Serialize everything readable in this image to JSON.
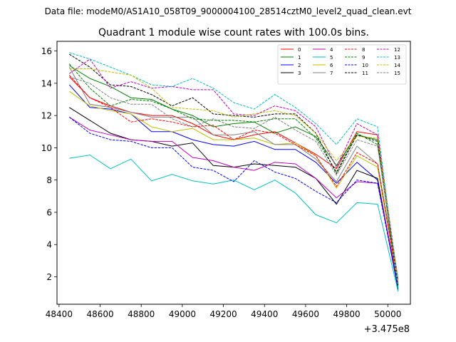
{
  "header": {
    "caption": "Data file: modeM0/AS1A10_058T09_9000004100_28514cztM0_level2_quad_clean.evt"
  },
  "chart_data": {
    "type": "line",
    "title": "Quadrant 1 module wise count rates with 100.0s bins.",
    "xlabel": "",
    "ylabel": "",
    "x_offset_label": "+3.475e8",
    "x": [
      48450,
      48550,
      48650,
      48750,
      48850,
      48950,
      49050,
      49150,
      49250,
      49350,
      49450,
      49550,
      49650,
      49750,
      49850,
      49950,
      50050
    ],
    "xlim": [
      48390,
      50110
    ],
    "ylim": [
      0.3,
      16.6
    ],
    "xticks": [
      48400,
      48600,
      48800,
      49000,
      49200,
      49400,
      49600,
      49800,
      50000
    ],
    "xtick_labels": [
      "48400",
      "48600",
      "48800",
      "49000",
      "49200",
      "49400",
      "49600",
      "49800",
      "50000"
    ],
    "yticks": [
      2,
      4,
      6,
      8,
      10,
      12,
      14,
      16
    ],
    "ytick_labels": [
      "2",
      "4",
      "6",
      "8",
      "10",
      "12",
      "14",
      "16"
    ],
    "grid": false,
    "legend_position": "top-right",
    "series": [
      {
        "name": "0",
        "color": "#ff0000",
        "dash": "solid",
        "values": [
          14.4,
          13.1,
          12.6,
          12.2,
          12.0,
          12.0,
          11.5,
          10.8,
          10.5,
          10.8,
          11.0,
          10.3,
          9.6,
          8.7,
          11.0,
          10.8,
          1.4
        ]
      },
      {
        "name": "1",
        "color": "#008000",
        "dash": "solid",
        "values": [
          15.1,
          14.3,
          13.8,
          13.1,
          13.0,
          12.4,
          12.0,
          11.3,
          11.5,
          11.6,
          10.9,
          11.3,
          10.7,
          8.9,
          10.8,
          10.5,
          1.3
        ]
      },
      {
        "name": "2",
        "color": "#0000ff",
        "dash": "solid",
        "values": [
          13.9,
          12.5,
          12.4,
          12.1,
          11.0,
          11.0,
          10.5,
          10.2,
          10.1,
          10.4,
          9.9,
          9.9,
          9.1,
          7.8,
          9.1,
          8.0,
          1.2
        ]
      },
      {
        "name": "3",
        "color": "#000000",
        "dash": "solid",
        "values": [
          12.5,
          11.7,
          10.9,
          10.5,
          10.4,
          10.1,
          10.3,
          8.9,
          8.8,
          9.0,
          8.9,
          8.8,
          8.1,
          6.5,
          8.6,
          8.1,
          1.3
        ]
      },
      {
        "name": "4",
        "color": "#bf00bf",
        "dash": "solid",
        "values": [
          11.9,
          11.1,
          10.8,
          10.5,
          10.4,
          10.4,
          9.4,
          9.2,
          8.8,
          8.6,
          9.1,
          9.0,
          8.1,
          6.9,
          7.9,
          7.8,
          1.6
        ]
      },
      {
        "name": "5",
        "color": "#00bfbf",
        "dash": "solid",
        "values": [
          9.35,
          9.55,
          8.7,
          9.3,
          7.95,
          8.35,
          7.95,
          7.75,
          8.0,
          7.4,
          8.0,
          7.2,
          5.85,
          5.35,
          6.6,
          6.5,
          1.1
        ]
      },
      {
        "name": "6",
        "color": "#bfbf00",
        "dash": "solid",
        "values": [
          13.5,
          12.6,
          12.3,
          12.1,
          11.3,
          11.0,
          11.2,
          10.5,
          10.5,
          10.6,
          10.2,
          10.3,
          9.5,
          7.5,
          9.5,
          8.8,
          1.5
        ]
      },
      {
        "name": "7",
        "color": "#808080",
        "dash": "solid",
        "values": [
          15.0,
          12.7,
          12.5,
          12.2,
          11.9,
          11.9,
          11.9,
          10.8,
          10.8,
          11.0,
          10.2,
          10.2,
          9.3,
          7.9,
          10.1,
          9.0,
          1.8
        ]
      },
      {
        "name": "8",
        "color": "#ff0000",
        "dash": "dashed",
        "values": [
          14.5,
          13.1,
          12.5,
          11.6,
          11.8,
          11.6,
          11.3,
          11.4,
          10.5,
          11.1,
          10.9,
          10.2,
          9.5,
          7.6,
          9.7,
          9.0,
          1.5
        ]
      },
      {
        "name": "9",
        "color": "#008000",
        "dash": "dashed",
        "values": [
          15.2,
          13.7,
          12.6,
          13.0,
          12.9,
          12.4,
          11.8,
          11.7,
          11.7,
          11.6,
          11.8,
          11.8,
          10.6,
          8.5,
          10.9,
          10.2,
          1.5
        ]
      },
      {
        "name": "10",
        "color": "#0000ff",
        "dash": "dashed",
        "values": [
          11.9,
          10.9,
          10.5,
          10.4,
          10.0,
          10.0,
          8.8,
          8.6,
          7.9,
          9.2,
          8.5,
          8.1,
          7.3,
          6.6,
          8.0,
          7.8,
          1.3
        ]
      },
      {
        "name": "11",
        "color": "#000000",
        "dash": "dashed",
        "values": [
          15.8,
          15.0,
          13.9,
          13.8,
          13.3,
          12.6,
          13.1,
          12.1,
          12.0,
          11.9,
          12.1,
          12.1,
          10.9,
          8.4,
          10.8,
          10.4,
          1.5
        ]
      },
      {
        "name": "12",
        "color": "#bf00bf",
        "dash": "dashed",
        "values": [
          14.6,
          15.5,
          13.7,
          14.1,
          13.7,
          13.8,
          13.6,
          13.6,
          12.1,
          12.0,
          12.6,
          12.3,
          11.3,
          8.8,
          11.5,
          10.8,
          1.8
        ]
      },
      {
        "name": "13",
        "color": "#00bfbf",
        "dash": "dashed",
        "values": [
          15.9,
          15.5,
          15.0,
          14.5,
          13.9,
          13.8,
          14.3,
          13.7,
          12.8,
          12.4,
          13.3,
          12.5,
          11.5,
          10.2,
          11.8,
          11.3,
          1.3
        ]
      },
      {
        "name": "14",
        "color": "#bfbf00",
        "dash": "dashed",
        "values": [
          14.9,
          14.9,
          14.7,
          14.5,
          13.7,
          12.5,
          12.4,
          12.3,
          11.9,
          12.1,
          12.3,
          12.0,
          10.9,
          9.2,
          10.7,
          10.6,
          1.7
        ]
      },
      {
        "name": "15",
        "color": "#808080",
        "dash": "dashed",
        "values": [
          14.4,
          14.0,
          13.1,
          12.7,
          12.7,
          11.8,
          11.3,
          11.8,
          11.3,
          11.2,
          11.9,
          11.1,
          10.4,
          8.3,
          10.5,
          10.1,
          1.9
        ]
      }
    ]
  }
}
